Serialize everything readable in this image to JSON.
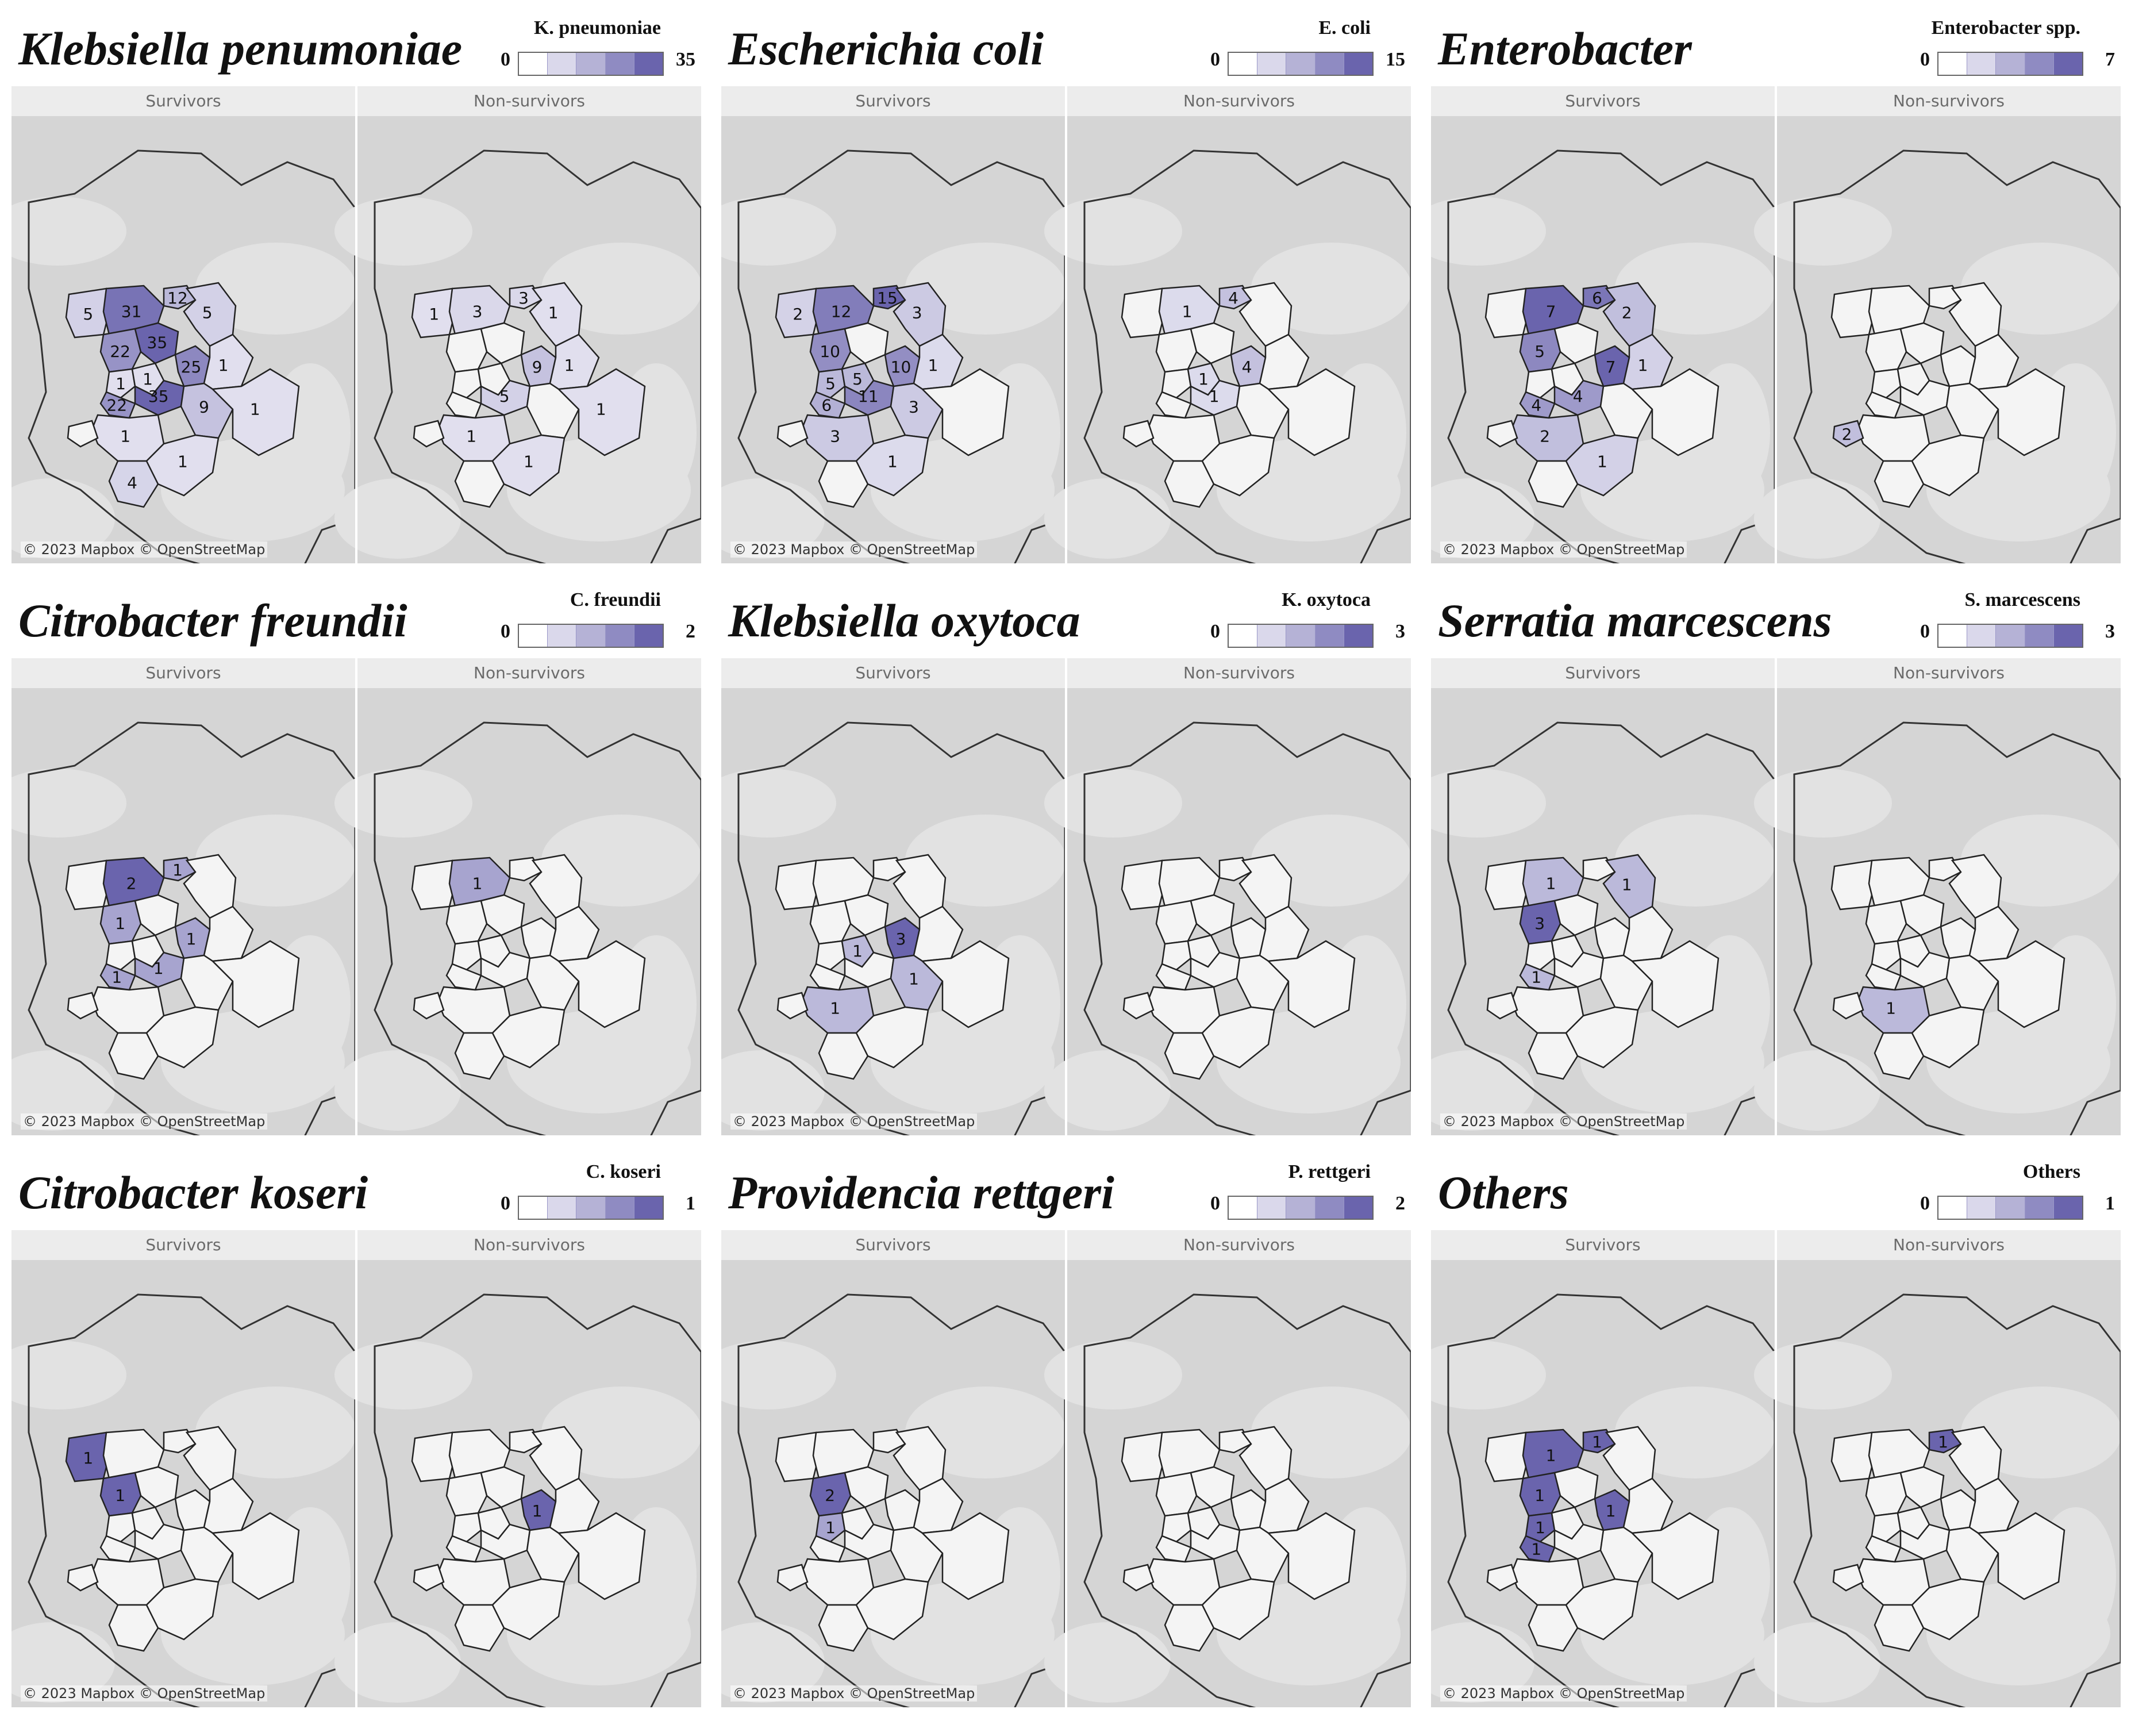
{
  "attribution": "© 2023 Mapbox © OpenStreetMap",
  "facet_labels": {
    "left": "Survivors",
    "right": "Non-survivors"
  },
  "colors": {
    "low": "#ffffff",
    "high": "#6a64ad",
    "region_stroke": "#222222",
    "basemap": "#d5d5d5"
  },
  "panels": [
    {
      "title": "Klebsiella penumoniae",
      "legend_title": "K. pneumoniae",
      "min": "0",
      "max": "35",
      "survivors": [
        {
          "region": "r01",
          "value": "5"
        },
        {
          "region": "r02",
          "value": "31"
        },
        {
          "region": "r03",
          "value": "12"
        },
        {
          "region": "r04",
          "value": "5"
        },
        {
          "region": "r05",
          "value": "22"
        },
        {
          "region": "r06",
          "value": "35"
        },
        {
          "region": "r07",
          "value": "1"
        },
        {
          "region": "r08",
          "value": "1"
        },
        {
          "region": "r09",
          "value": "25"
        },
        {
          "region": "r10",
          "value": "1"
        },
        {
          "region": "r11",
          "value": "22"
        },
        {
          "region": "r12",
          "value": "35"
        },
        {
          "region": "r13",
          "value": "9"
        },
        {
          "region": "r14",
          "value": "1"
        },
        {
          "region": "r15",
          "value": "1"
        },
        {
          "region": "r16",
          "value": "4"
        },
        {
          "region": "r17",
          "value": "1"
        }
      ],
      "nonsurvivors": [
        {
          "region": "r01",
          "value": "1"
        },
        {
          "region": "r02",
          "value": "3"
        },
        {
          "region": "r03",
          "value": "3"
        },
        {
          "region": "r04",
          "value": "1"
        },
        {
          "region": "r09",
          "value": "9"
        },
        {
          "region": "r10",
          "value": "1"
        },
        {
          "region": "r12",
          "value": "5"
        },
        {
          "region": "r14",
          "value": "1"
        },
        {
          "region": "r15",
          "value": "1"
        },
        {
          "region": "r17",
          "value": "1"
        }
      ]
    },
    {
      "title": "Escherichia coli",
      "legend_title": "E. coli",
      "min": "0",
      "max": "15",
      "survivors": [
        {
          "region": "r01",
          "value": "2"
        },
        {
          "region": "r02",
          "value": "12"
        },
        {
          "region": "r03",
          "value": "15"
        },
        {
          "region": "r04",
          "value": "3"
        },
        {
          "region": "r05",
          "value": "10"
        },
        {
          "region": "r07",
          "value": "5"
        },
        {
          "region": "r08",
          "value": "5"
        },
        {
          "region": "r09",
          "value": "10"
        },
        {
          "region": "r10",
          "value": "1"
        },
        {
          "region": "r11",
          "value": "6"
        },
        {
          "region": "r12",
          "value": "11"
        },
        {
          "region": "r14",
          "value": "3"
        },
        {
          "region": "r13",
          "value": "3"
        },
        {
          "region": "r17",
          "value": "1"
        }
      ],
      "nonsurvivors": [
        {
          "region": "r02",
          "value": "1"
        },
        {
          "region": "r03",
          "value": "4"
        },
        {
          "region": "r09",
          "value": "4"
        },
        {
          "region": "r08",
          "value": "1"
        },
        {
          "region": "r12",
          "value": "1"
        }
      ]
    },
    {
      "title": "Enterobacter",
      "legend_title": "Enterobacter spp.",
      "min": "0",
      "max": "7",
      "survivors": [
        {
          "region": "r02",
          "value": "7"
        },
        {
          "region": "r03",
          "value": "6"
        },
        {
          "region": "r04",
          "value": "2"
        },
        {
          "region": "r05",
          "value": "5"
        },
        {
          "region": "r09",
          "value": "7"
        },
        {
          "region": "r11",
          "value": "4"
        },
        {
          "region": "r12",
          "value": "4"
        },
        {
          "region": "r10",
          "value": "1"
        },
        {
          "region": "r14",
          "value": "2"
        },
        {
          "region": "r17",
          "value": "1"
        }
      ],
      "nonsurvivors": [
        {
          "region": "r18",
          "value": "2"
        }
      ]
    },
    {
      "title": "Citrobacter freundii",
      "legend_title": "C. freundii",
      "min": "0",
      "max": "2",
      "survivors": [
        {
          "region": "r02",
          "value": "2"
        },
        {
          "region": "r03",
          "value": "1"
        },
        {
          "region": "r05",
          "value": "1"
        },
        {
          "region": "r09",
          "value": "1"
        },
        {
          "region": "r11",
          "value": "1"
        },
        {
          "region": "r12",
          "value": "1"
        }
      ],
      "nonsurvivors": [
        {
          "region": "r02",
          "value": "1"
        }
      ]
    },
    {
      "title": "Klebsiella oxytoca",
      "legend_title": "K. oxytoca",
      "min": "0",
      "max": "3",
      "survivors": [
        {
          "region": "r08",
          "value": "1"
        },
        {
          "region": "r09",
          "value": "3"
        },
        {
          "region": "r14",
          "value": "1"
        },
        {
          "region": "r13",
          "value": "1"
        }
      ],
      "nonsurvivors": []
    },
    {
      "title": "Serratia marcescens",
      "legend_title": "S. marcescens",
      "min": "0",
      "max": "3",
      "survivors": [
        {
          "region": "r02",
          "value": "1"
        },
        {
          "region": "r04",
          "value": "1"
        },
        {
          "region": "r05",
          "value": "3"
        },
        {
          "region": "r11",
          "value": "1"
        }
      ],
      "nonsurvivors": [
        {
          "region": "r14",
          "value": "1"
        }
      ]
    },
    {
      "title": "Citrobacter koseri",
      "legend_title": "C. koseri",
      "min": "0",
      "max": "1",
      "survivors": [
        {
          "region": "r01",
          "value": "1"
        },
        {
          "region": "r05",
          "value": "1"
        }
      ],
      "nonsurvivors": [
        {
          "region": "r09",
          "value": "1"
        }
      ]
    },
    {
      "title": "Providencia rettgeri",
      "legend_title": "P. rettgeri",
      "min": "0",
      "max": "2",
      "survivors": [
        {
          "region": "r05",
          "value": "2"
        },
        {
          "region": "r07",
          "value": "1"
        }
      ],
      "nonsurvivors": []
    },
    {
      "title": "Others",
      "legend_title": "Others",
      "min": "0",
      "max": "1",
      "survivors": [
        {
          "region": "r02",
          "value": "1"
        },
        {
          "region": "r03",
          "value": "1"
        },
        {
          "region": "r05",
          "value": "1"
        },
        {
          "region": "r11",
          "value": "1"
        },
        {
          "region": "r07",
          "value": "1"
        },
        {
          "region": "r09",
          "value": "1"
        }
      ],
      "nonsurvivors": [
        {
          "region": "r03",
          "value": "1"
        }
      ]
    }
  ]
}
